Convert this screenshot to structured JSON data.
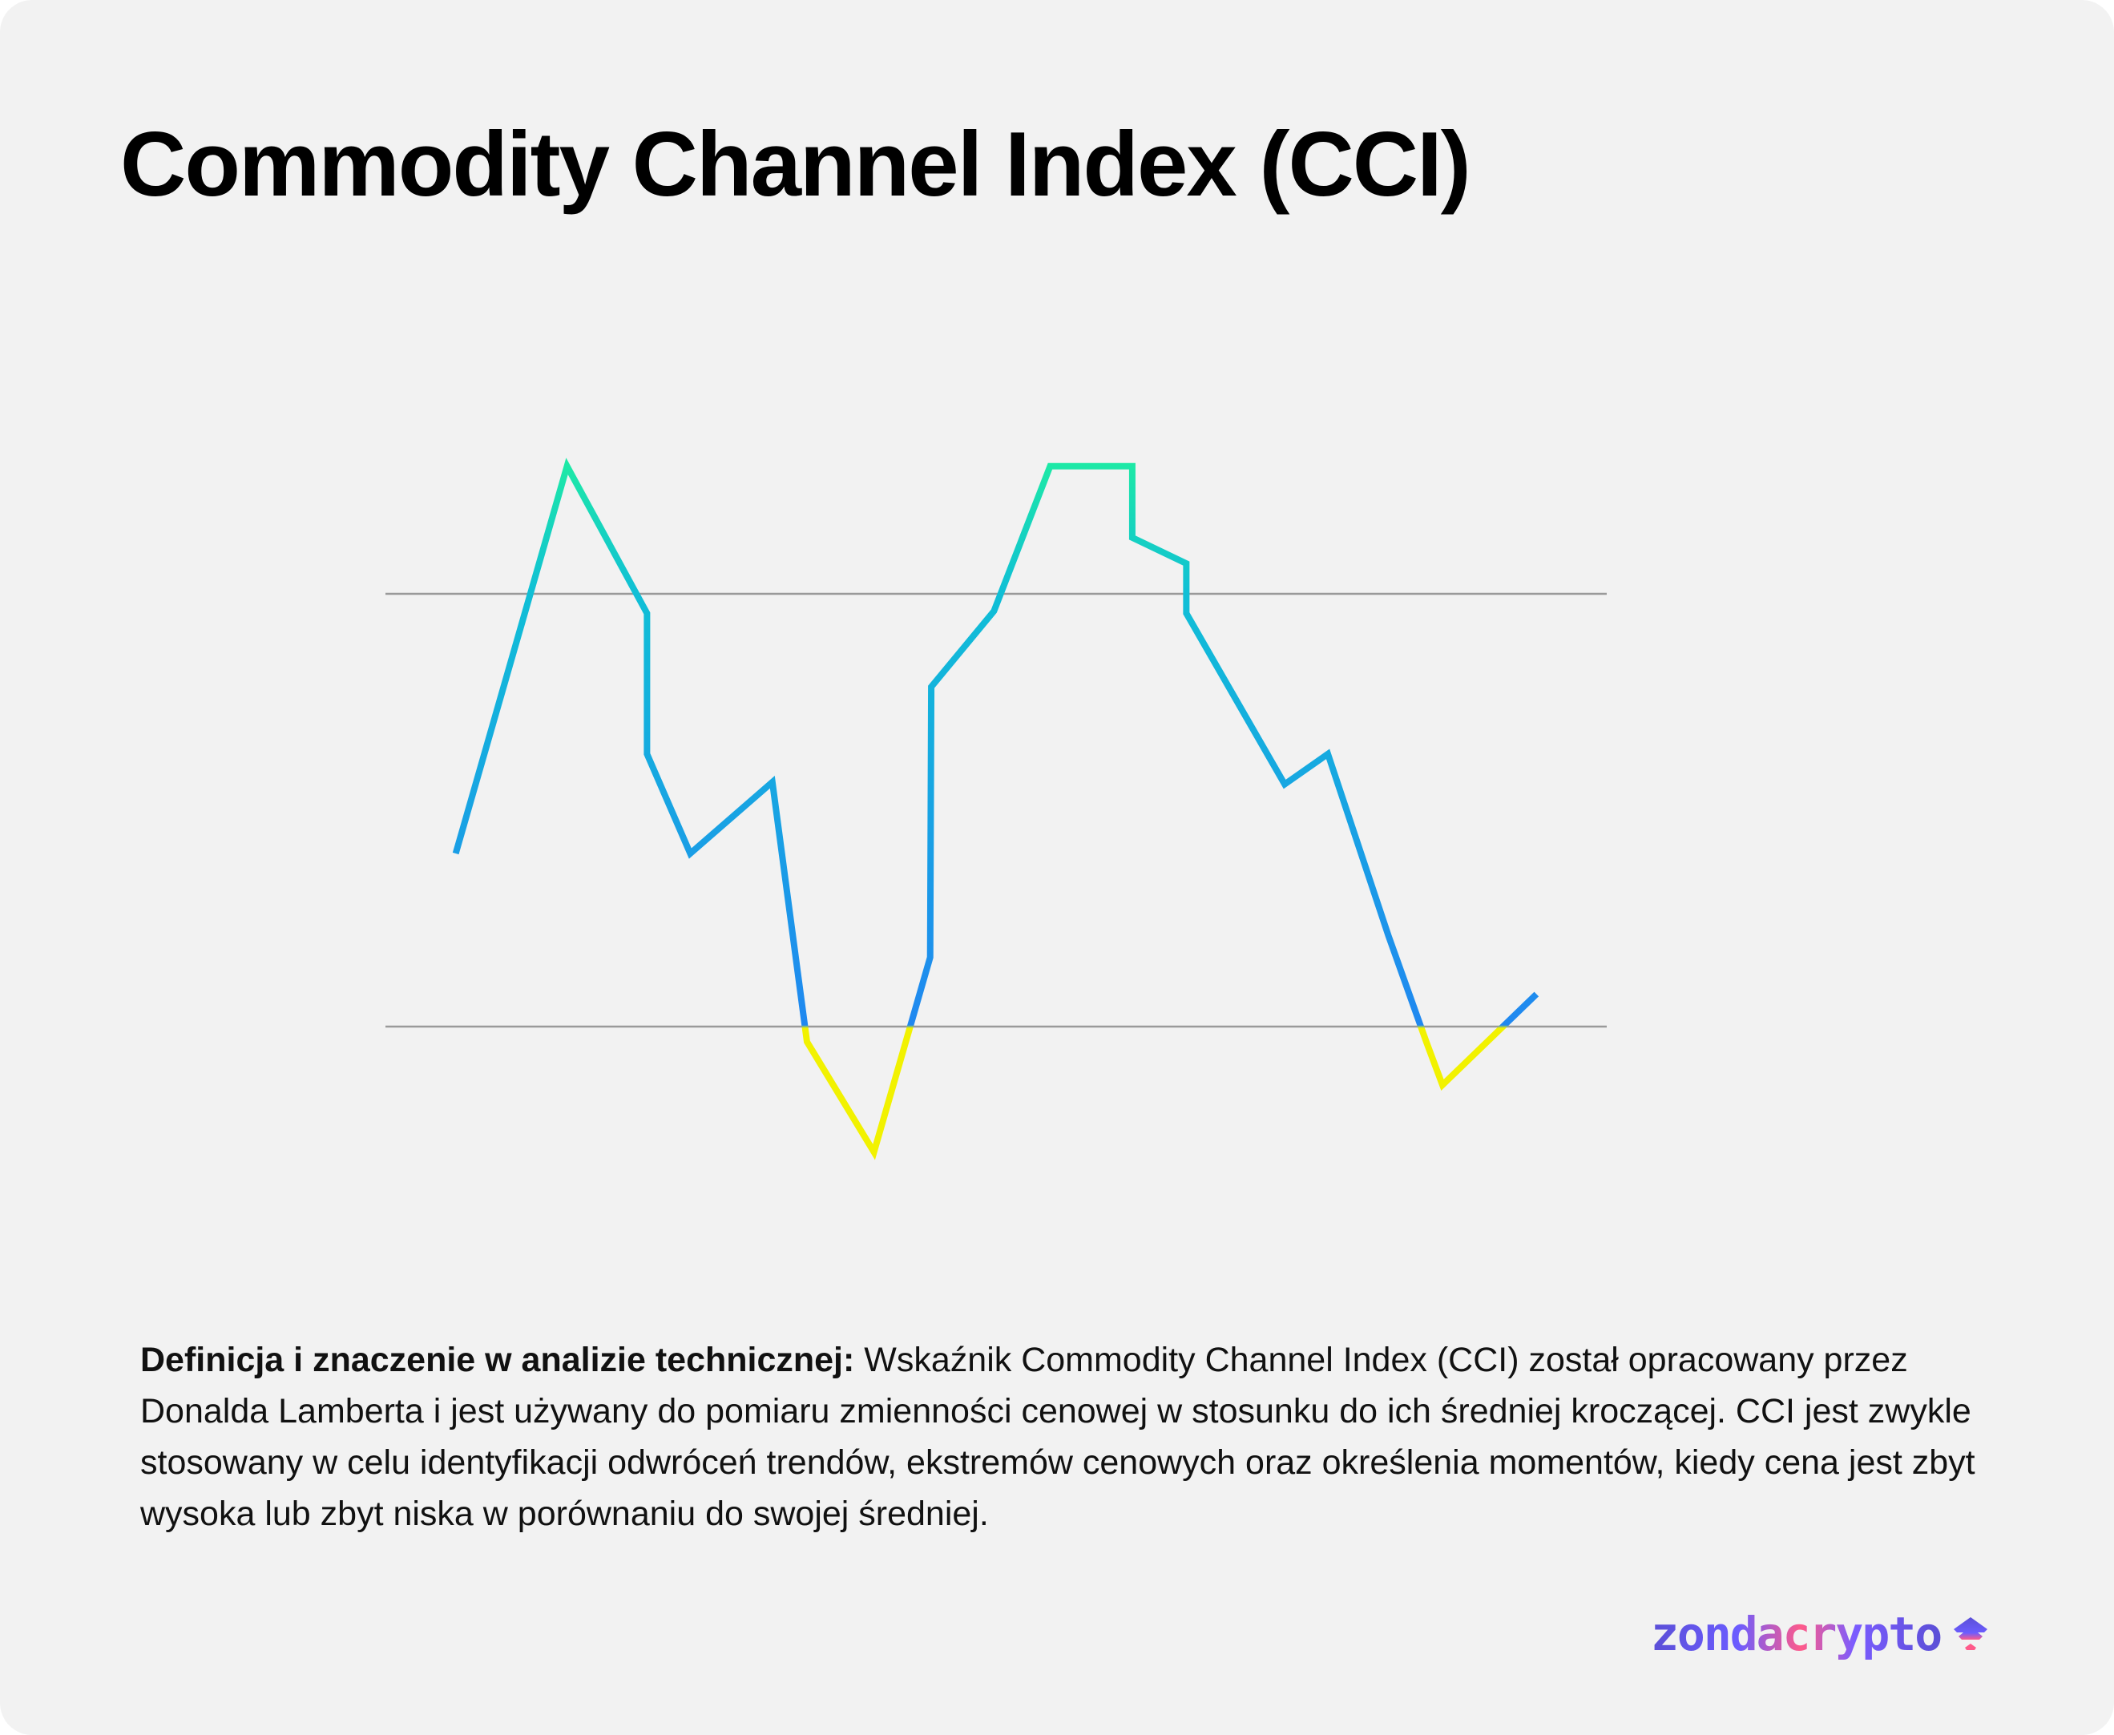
{
  "title": "Commodity Channel Index (CCI)",
  "description": {
    "bold": "Definicja i znaczenie w analizie technicznej:",
    "text": " Wskaźnik Commodity Channel Index (CCI) został opracowany przez Donalda Lamberta i jest używany do pomiaru zmienności cenowej w stosunku do ich średniej kroczącej. CCI jest zwykle stosowany w celu identyfikacji odwróceń trendów, ekstremów cenowych oraz określenia momentów, kiedy cena jest zbyt wysoka lub zbyt niska w porównaniu do swojej średniej."
  },
  "logo": {
    "text": "zondacrypto"
  },
  "colors": {
    "background": "#f2f2f2",
    "overbought": "#1de9a6",
    "neutral": "#10bfd6",
    "low": "#2088f0",
    "oversold": "#f2f200",
    "threshold_line": "#9a9a9a"
  },
  "chart_data": {
    "type": "line",
    "title": "Commodity Channel Index (CCI)",
    "xlabel": "",
    "ylabel": "",
    "x": [
      0,
      10.3,
      17.7,
      17.7,
      21.7,
      29.3,
      32.5,
      38.7,
      43.9,
      44,
      49.8,
      55,
      62.6,
      62.6,
      67.6,
      67.6,
      76.7,
      80.7,
      86.3,
      89.8,
      91.3,
      100
    ],
    "y": [
      -20,
      159,
      91,
      26,
      -20,
      13,
      -107,
      -158,
      -68,
      57,
      92,
      159,
      159,
      126,
      114,
      91,
      12,
      26,
      -58,
      -107,
      -127,
      -85
    ],
    "thresholds": [
      100,
      -100
    ],
    "xlim": [
      -6.5,
      106.5
    ],
    "ylim": [
      -220,
      230
    ],
    "grid": false,
    "axes_visible": false
  }
}
